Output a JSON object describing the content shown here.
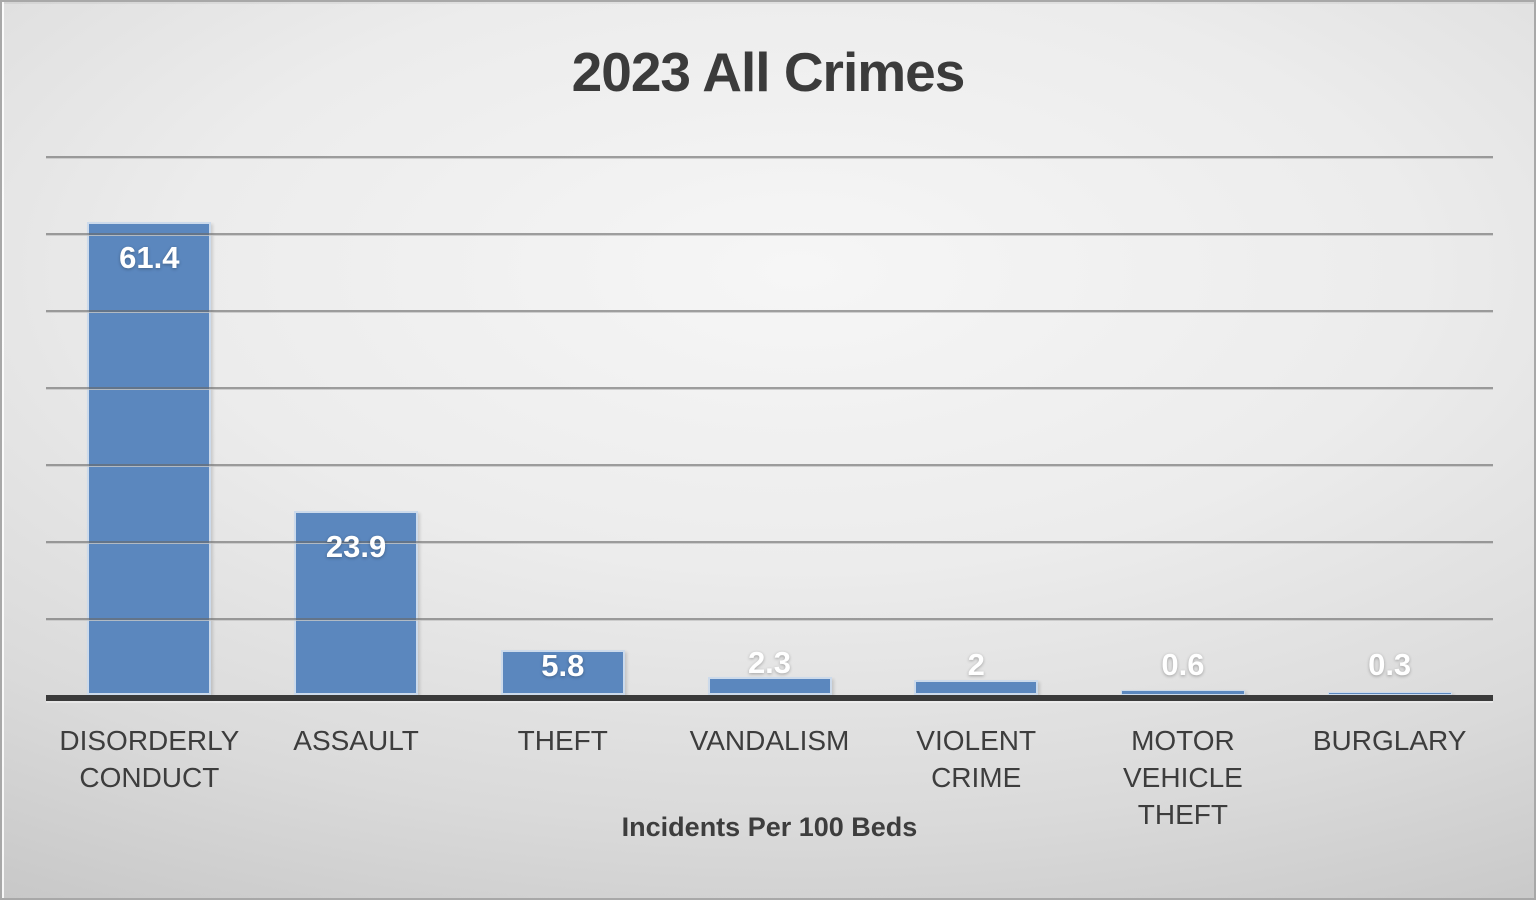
{
  "chart_data": {
    "type": "bar",
    "title": "2023 All Crimes",
    "xlabel": "Incidents Per 100 Beds",
    "ylabel": "",
    "categories": [
      "DISORDERLY CONDUCT",
      "ASSAULT",
      "THEFT",
      "VANDALISM",
      "VIOLENT CRIME",
      "MOTOR VEHICLE THEFT",
      "BURGLARY"
    ],
    "category_lines": [
      [
        "DISORDERLY",
        "CONDUCT"
      ],
      [
        "ASSAULT"
      ],
      [
        "THEFT"
      ],
      [
        "VANDALISM"
      ],
      [
        "VIOLENT CRIME"
      ],
      [
        "MOTOR",
        "VEHICLE THEFT"
      ],
      [
        "BURGLARY"
      ]
    ],
    "values": [
      61.4,
      23.9,
      5.8,
      2.3,
      2,
      0.6,
      0.3
    ],
    "value_labels": [
      "61.4",
      "23.9",
      "5.8",
      "2.3",
      "2",
      "0.6",
      "0.3"
    ],
    "label_position": [
      "inside",
      "inside",
      "inside",
      "outside",
      "outside",
      "outside",
      "outside"
    ],
    "ylim": [
      0,
      70
    ],
    "gridline_interval": 10,
    "grid": true,
    "legend": false,
    "colors": {
      "bar_fill": "#5b87be",
      "bar_border": "#ccdaeb",
      "value_label_text": "#ffffff",
      "title_text": "#3b3b3b",
      "category_text": "#3d3d3d",
      "gridline": "#8f8f8f",
      "axis_line": "#3a3a3a",
      "background_center": "#f6f6f6",
      "background_edge": "#c2c2c2"
    }
  }
}
